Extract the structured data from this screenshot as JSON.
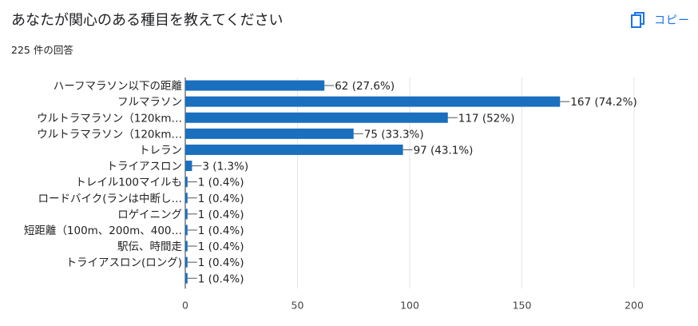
{
  "header": {
    "title": "あなたが関心のある種目を教えてください",
    "response_count": "225 件の回答",
    "copy_label": "コピー",
    "copy_icon": "copy-icon"
  },
  "colors": {
    "bar": "#1a6fbe",
    "accent": "#1a73e8",
    "grid": "#e6e6e6"
  },
  "chart_data": {
    "type": "bar",
    "orientation": "horizontal",
    "title": "あなたが関心のある種目を教えてください",
    "categories": [
      "ハーフマラソン以下の距離",
      "フルマラソン",
      "ウルトラマラソン（120km…",
      "ウルトラマラソン（120km…",
      "トレラン",
      "トライアスロン",
      "トレイル100マイルも",
      "ロードバイク(ランは中断し…",
      "ロゲイニング",
      "短距離（100m、200m、400…",
      "駅伝、時間走",
      "トライアスロン(ロング)",
      ""
    ],
    "values": [
      62,
      167,
      117,
      75,
      97,
      3,
      1,
      1,
      1,
      1,
      1,
      1,
      1
    ],
    "value_labels": [
      "62 (27.6%)",
      "167 (74.2%)",
      "117 (52%)",
      "75 (33.3%)",
      "97 (43.1%)",
      "3 (1.3%)",
      "1 (0.4%)",
      "1 (0.4%)",
      "1 (0.4%)",
      "1 (0.4%)",
      "1 (0.4%)",
      "1 (0.4%)",
      "1 (0.4%)"
    ],
    "xlim": [
      0,
      200
    ],
    "xticks": [
      "0",
      "50",
      "100",
      "150",
      "200"
    ],
    "grid": true
  }
}
